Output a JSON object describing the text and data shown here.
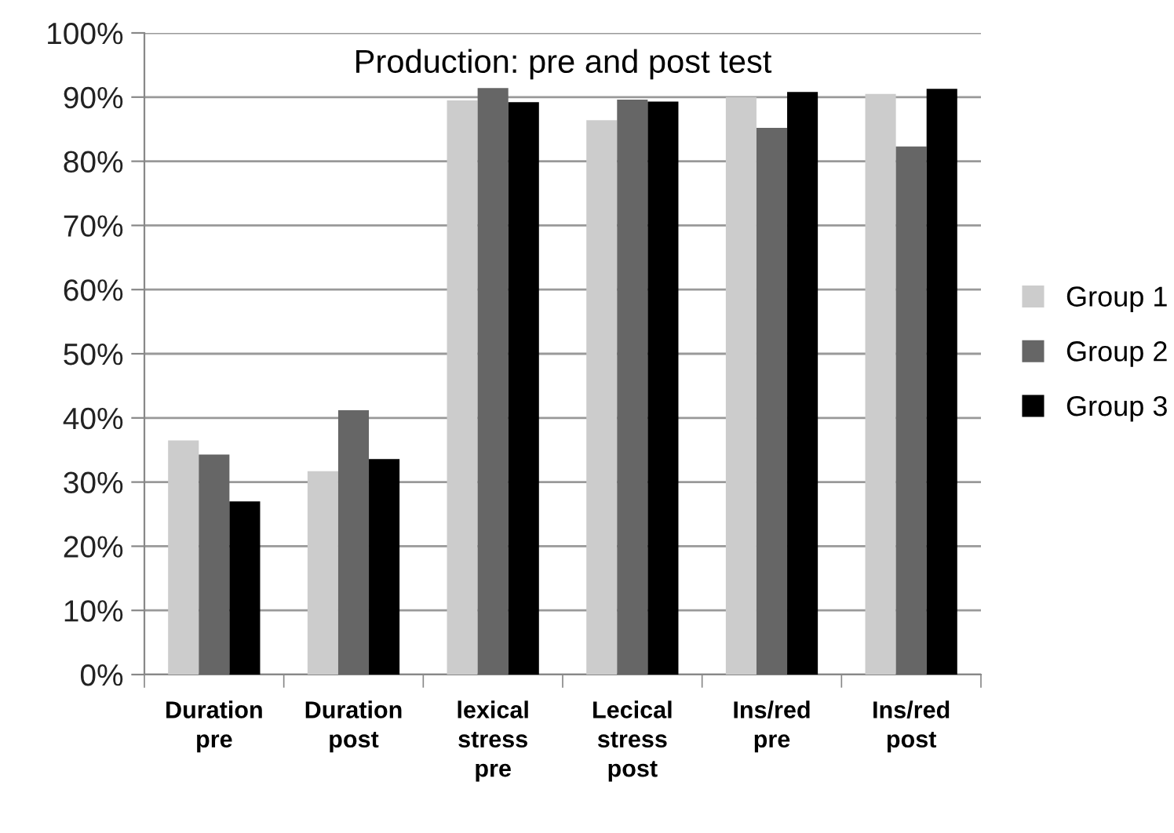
{
  "chart_data": {
    "type": "bar",
    "title": "Production: pre and post test",
    "categories": [
      "Duration\npre",
      "Duration\npost",
      "lexical\nstress\npre",
      "Lecical\nstress\npost",
      "Ins/red\npre",
      "Ins/red\npost"
    ],
    "series": [
      {
        "name": "Group 1",
        "color": "#cccccc",
        "values": [
          36.5,
          31.7,
          89.5,
          86.4,
          90.0,
          90.5
        ]
      },
      {
        "name": "Group 2",
        "color": "#666666",
        "values": [
          34.3,
          41.2,
          91.4,
          89.6,
          85.2,
          82.3
        ]
      },
      {
        "name": "Group 3",
        "color": "#000000",
        "values": [
          27.0,
          33.6,
          89.2,
          89.3,
          90.8,
          91.3
        ]
      }
    ],
    "ylim": [
      0,
      100
    ],
    "yticks": [
      {
        "value": 0,
        "label": "0%"
      },
      {
        "value": 10,
        "label": "10%"
      },
      {
        "value": 20,
        "label": "20%"
      },
      {
        "value": 30,
        "label": "30%"
      },
      {
        "value": 40,
        "label": "40%"
      },
      {
        "value": 50,
        "label": "50%"
      },
      {
        "value": 60,
        "label": "60%"
      },
      {
        "value": 70,
        "label": "70%"
      },
      {
        "value": 80,
        "label": "80%"
      },
      {
        "value": 90,
        "label": "90%"
      },
      {
        "value": 100,
        "label": "100%"
      }
    ],
    "grid": "y",
    "legend": "right"
  }
}
